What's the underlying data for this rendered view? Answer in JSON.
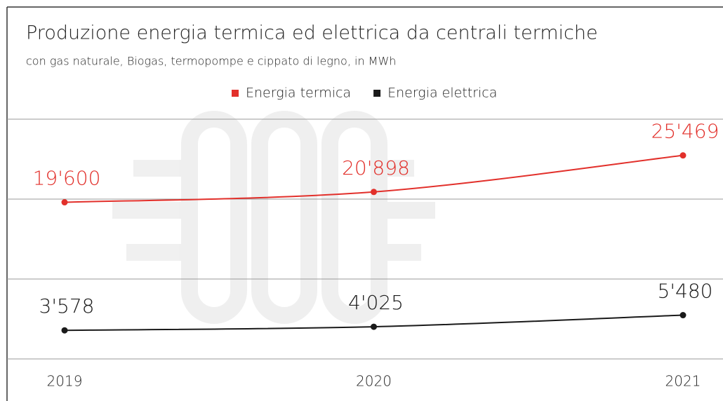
{
  "chart_data": {
    "type": "line",
    "title": "Produzione energia termica ed elettrica da centrali termiche",
    "subtitle": "con gas naturale, Biogas, termopompe e cippato di legno, in MWh",
    "categories": [
      "2019",
      "2020",
      "2021"
    ],
    "series": [
      {
        "name": "Energia termica",
        "color": "#e2302b",
        "values": [
          19600,
          20898,
          25469
        ],
        "value_labels": [
          "19'600",
          "20'898",
          "25'469"
        ]
      },
      {
        "name": "Energia elettrica",
        "color": "#1a1a1a",
        "values": [
          3578,
          4025,
          5480
        ],
        "value_labels": [
          "3'578",
          "4'025",
          "5'480"
        ]
      }
    ],
    "ylim": [
      0,
      30000
    ],
    "yticks": [
      0,
      10000,
      20000,
      30000
    ],
    "grid": true,
    "legend": "top"
  }
}
